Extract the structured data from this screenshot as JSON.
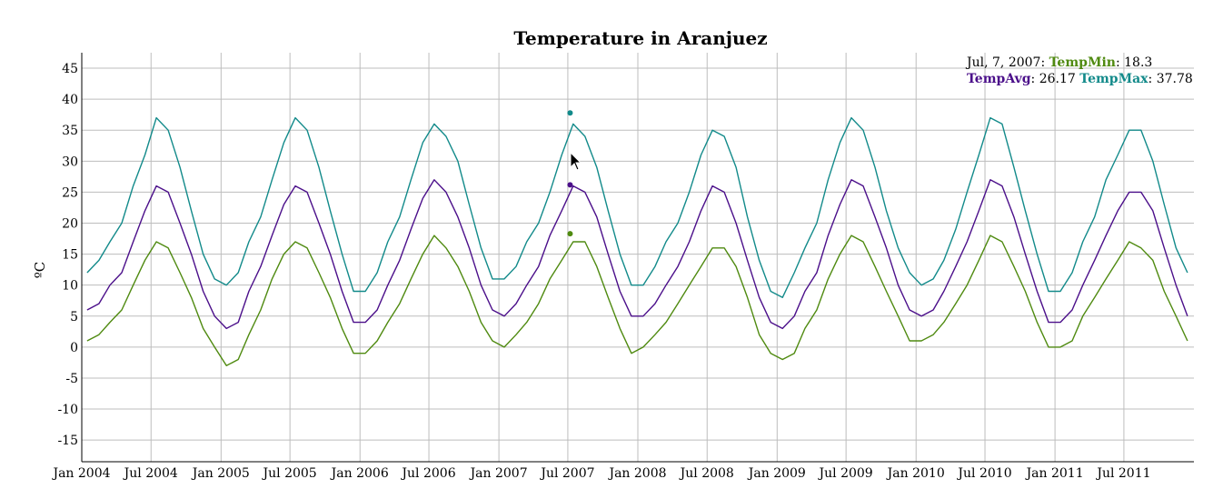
{
  "chart_data": {
    "type": "line",
    "title": "Temperature in Aranjuez",
    "ylabel": "ºC",
    "xlabel": "",
    "ylim": [
      -18.5,
      47.5
    ],
    "xlim": [
      "2004-01-01",
      "2012-01-01"
    ],
    "y_ticks": [
      45,
      40,
      35,
      30,
      25,
      20,
      15,
      10,
      5,
      0,
      -5,
      -10,
      -15
    ],
    "x_ticks": [
      "Jan 2004",
      "Jul 2004",
      "Jan 2005",
      "Jul 2005",
      "Jan 2006",
      "Jul 2006",
      "Jan 2007",
      "Jul 2007",
      "Jan 2008",
      "Jul 2008",
      "Jan 2009",
      "Jul 2009",
      "Jan 2010",
      "Jul 2010",
      "Jan 2011",
      "Jul 2011"
    ],
    "x_tick_dates": [
      "2004-01-01",
      "2004-07-01",
      "2005-01-01",
      "2005-07-01",
      "2006-01-01",
      "2006-07-01",
      "2007-01-01",
      "2007-07-01",
      "2008-01-01",
      "2008-07-01",
      "2009-01-01",
      "2009-07-01",
      "2010-01-01",
      "2010-07-01",
      "2011-01-01",
      "2011-07-01"
    ],
    "grid": true,
    "legend_placement": "top-right",
    "series": [
      {
        "name": "TempMin",
        "color": "#4f8a10",
        "x": [
          "2004-01-15",
          "2004-02-15",
          "2004-03-15",
          "2004-04-15",
          "2004-05-15",
          "2004-06-15",
          "2004-07-15",
          "2004-08-15",
          "2004-09-15",
          "2004-10-15",
          "2004-11-15",
          "2004-12-15",
          "2005-01-15",
          "2005-02-15",
          "2005-03-15",
          "2005-04-15",
          "2005-05-15",
          "2005-06-15",
          "2005-07-15",
          "2005-08-15",
          "2005-09-15",
          "2005-10-15",
          "2005-11-15",
          "2005-12-15",
          "2006-01-15",
          "2006-02-15",
          "2006-03-15",
          "2006-04-15",
          "2006-05-15",
          "2006-06-15",
          "2006-07-15",
          "2006-08-15",
          "2006-09-15",
          "2006-10-15",
          "2006-11-15",
          "2006-12-15",
          "2007-01-15",
          "2007-02-15",
          "2007-03-15",
          "2007-04-15",
          "2007-05-15",
          "2007-06-15",
          "2007-07-15",
          "2007-08-15",
          "2007-09-15",
          "2007-10-15",
          "2007-11-15",
          "2007-12-15",
          "2008-01-15",
          "2008-02-15",
          "2008-03-15",
          "2008-04-15",
          "2008-05-15",
          "2008-06-15",
          "2008-07-15",
          "2008-08-15",
          "2008-09-15",
          "2008-10-15",
          "2008-11-15",
          "2008-12-15",
          "2009-01-15",
          "2009-02-15",
          "2009-03-15",
          "2009-04-15",
          "2009-05-15",
          "2009-06-15",
          "2009-07-15",
          "2009-08-15",
          "2009-09-15",
          "2009-10-15",
          "2009-11-15",
          "2009-12-15",
          "2010-01-15",
          "2010-02-15",
          "2010-03-15",
          "2010-04-15",
          "2010-05-15",
          "2010-06-15",
          "2010-07-15",
          "2010-08-15",
          "2010-09-15",
          "2010-10-15",
          "2010-11-15",
          "2010-12-15",
          "2011-01-15",
          "2011-02-15",
          "2011-03-15",
          "2011-04-15",
          "2011-05-15",
          "2011-06-15",
          "2011-07-15",
          "2011-08-15",
          "2011-09-15",
          "2011-10-15",
          "2011-11-15",
          "2011-12-15"
        ],
        "values": [
          1,
          2,
          4,
          6,
          10,
          14,
          17,
          16,
          12,
          8,
          3,
          0,
          -3,
          -2,
          2,
          6,
          11,
          15,
          17,
          16,
          12,
          8,
          3,
          -1,
          -1,
          1,
          4,
          7,
          11,
          15,
          18,
          16,
          13,
          9,
          4,
          1,
          0,
          2,
          4,
          7,
          11,
          14,
          17,
          17,
          13,
          8,
          3,
          -1,
          0,
          2,
          4,
          7,
          10,
          13,
          16,
          16,
          13,
          8,
          2,
          -1,
          -2,
          -1,
          3,
          6,
          11,
          15,
          18,
          17,
          13,
          9,
          5,
          1,
          1,
          2,
          4,
          7,
          10,
          14,
          18,
          17,
          13,
          9,
          4,
          0,
          0,
          1,
          5,
          8,
          11,
          14,
          17,
          16,
          14,
          9,
          5,
          1
        ]
      },
      {
        "name": "TempAvg",
        "color": "#4b0f8a",
        "x": [
          "2004-01-15",
          "2004-02-15",
          "2004-03-15",
          "2004-04-15",
          "2004-05-15",
          "2004-06-15",
          "2004-07-15",
          "2004-08-15",
          "2004-09-15",
          "2004-10-15",
          "2004-11-15",
          "2004-12-15",
          "2005-01-15",
          "2005-02-15",
          "2005-03-15",
          "2005-04-15",
          "2005-05-15",
          "2005-06-15",
          "2005-07-15",
          "2005-08-15",
          "2005-09-15",
          "2005-10-15",
          "2005-11-15",
          "2005-12-15",
          "2006-01-15",
          "2006-02-15",
          "2006-03-15",
          "2006-04-15",
          "2006-05-15",
          "2006-06-15",
          "2006-07-15",
          "2006-08-15",
          "2006-09-15",
          "2006-10-15",
          "2006-11-15",
          "2006-12-15",
          "2007-01-15",
          "2007-02-15",
          "2007-03-15",
          "2007-04-15",
          "2007-05-15",
          "2007-06-15",
          "2007-07-15",
          "2007-08-15",
          "2007-09-15",
          "2007-10-15",
          "2007-11-15",
          "2007-12-15",
          "2008-01-15",
          "2008-02-15",
          "2008-03-15",
          "2008-04-15",
          "2008-05-15",
          "2008-06-15",
          "2008-07-15",
          "2008-08-15",
          "2008-09-15",
          "2008-10-15",
          "2008-11-15",
          "2008-12-15",
          "2009-01-15",
          "2009-02-15",
          "2009-03-15",
          "2009-04-15",
          "2009-05-15",
          "2009-06-15",
          "2009-07-15",
          "2009-08-15",
          "2009-09-15",
          "2009-10-15",
          "2009-11-15",
          "2009-12-15",
          "2010-01-15",
          "2010-02-15",
          "2010-03-15",
          "2010-04-15",
          "2010-05-15",
          "2010-06-15",
          "2010-07-15",
          "2010-08-15",
          "2010-09-15",
          "2010-10-15",
          "2010-11-15",
          "2010-12-15",
          "2011-01-15",
          "2011-02-15",
          "2011-03-15",
          "2011-04-15",
          "2011-05-15",
          "2011-06-15",
          "2011-07-15",
          "2011-08-15",
          "2011-09-15",
          "2011-10-15",
          "2011-11-15",
          "2011-12-15"
        ],
        "values": [
          6,
          7,
          10,
          12,
          17,
          22,
          26,
          25,
          20,
          15,
          9,
          5,
          3,
          4,
          9,
          13,
          18,
          23,
          26,
          25,
          20,
          15,
          9,
          4,
          4,
          6,
          10,
          14,
          19,
          24,
          27,
          25,
          21,
          16,
          10,
          6,
          5,
          7,
          10,
          13,
          18,
          22,
          26,
          25,
          21,
          15,
          9,
          5,
          5,
          7,
          10,
          13,
          17,
          22,
          26,
          25,
          20,
          14,
          8,
          4,
          3,
          5,
          9,
          12,
          18,
          23,
          27,
          26,
          21,
          16,
          10,
          6,
          5,
          6,
          9,
          13,
          17,
          22,
          27,
          26,
          21,
          15,
          9,
          4,
          4,
          6,
          10,
          14,
          18,
          22,
          25,
          25,
          22,
          16,
          10,
          5
        ]
      },
      {
        "name": "TempMax",
        "color": "#128a8a",
        "x": [
          "2004-01-15",
          "2004-02-15",
          "2004-03-15",
          "2004-04-15",
          "2004-05-15",
          "2004-06-15",
          "2004-07-15",
          "2004-08-15",
          "2004-09-15",
          "2004-10-15",
          "2004-11-15",
          "2004-12-15",
          "2005-01-15",
          "2005-02-15",
          "2005-03-15",
          "2005-04-15",
          "2005-05-15",
          "2005-06-15",
          "2005-07-15",
          "2005-08-15",
          "2005-09-15",
          "2005-10-15",
          "2005-11-15",
          "2005-12-15",
          "2006-01-15",
          "2006-02-15",
          "2006-03-15",
          "2006-04-15",
          "2006-05-15",
          "2006-06-15",
          "2006-07-15",
          "2006-08-15",
          "2006-09-15",
          "2006-10-15",
          "2006-11-15",
          "2006-12-15",
          "2007-01-15",
          "2007-02-15",
          "2007-03-15",
          "2007-04-15",
          "2007-05-15",
          "2007-06-15",
          "2007-07-15",
          "2007-08-15",
          "2007-09-15",
          "2007-10-15",
          "2007-11-15",
          "2007-12-15",
          "2008-01-15",
          "2008-02-15",
          "2008-03-15",
          "2008-04-15",
          "2008-05-15",
          "2008-06-15",
          "2008-07-15",
          "2008-08-15",
          "2008-09-15",
          "2008-10-15",
          "2008-11-15",
          "2008-12-15",
          "2009-01-15",
          "2009-02-15",
          "2009-03-15",
          "2009-04-15",
          "2009-05-15",
          "2009-06-15",
          "2009-07-15",
          "2009-08-15",
          "2009-09-15",
          "2009-10-15",
          "2009-11-15",
          "2009-12-15",
          "2010-01-15",
          "2010-02-15",
          "2010-03-15",
          "2010-04-15",
          "2010-05-15",
          "2010-06-15",
          "2010-07-15",
          "2010-08-15",
          "2010-09-15",
          "2010-10-15",
          "2010-11-15",
          "2010-12-15",
          "2011-01-15",
          "2011-02-15",
          "2011-03-15",
          "2011-04-15",
          "2011-05-15",
          "2011-06-15",
          "2011-07-15",
          "2011-08-15",
          "2011-09-15",
          "2011-10-15",
          "2011-11-15",
          "2011-12-15"
        ],
        "values": [
          12,
          14,
          17,
          20,
          26,
          31,
          37,
          35,
          29,
          22,
          15,
          11,
          10,
          12,
          17,
          21,
          27,
          33,
          37,
          35,
          29,
          22,
          15,
          9,
          9,
          12,
          17,
          21,
          27,
          33,
          36,
          34,
          30,
          23,
          16,
          11,
          11,
          13,
          17,
          20,
          25,
          31,
          36,
          34,
          29,
          22,
          15,
          10,
          10,
          13,
          17,
          20,
          25,
          31,
          35,
          34,
          29,
          21,
          14,
          9,
          8,
          12,
          16,
          20,
          27,
          33,
          37,
          35,
          29,
          22,
          16,
          12,
          10,
          11,
          14,
          19,
          25,
          31,
          37,
          36,
          29,
          22,
          15,
          9,
          9,
          12,
          17,
          21,
          27,
          31,
          35,
          35,
          30,
          23,
          16,
          12
        ]
      }
    ],
    "hover": {
      "date": "Jul, 7, 2007",
      "date_iso": "2007-07-07",
      "TempMin": "18.3",
      "TempAvg": "26.17",
      "TempMax": "37.78",
      "TempMin_value": 18.3,
      "TempAvg_value": 26.17,
      "TempMax_value": 37.78
    }
  }
}
